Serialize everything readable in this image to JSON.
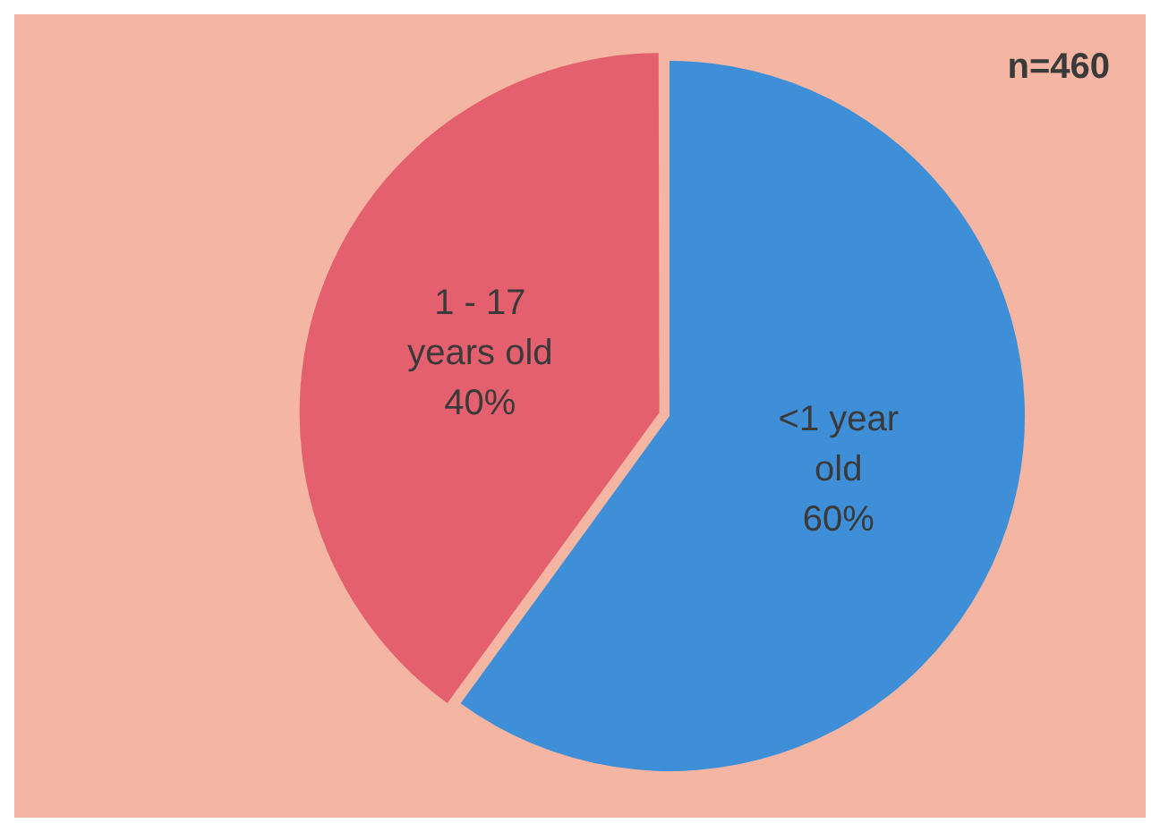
{
  "chart_data": {
    "type": "pie",
    "categories": [
      "<1 year old",
      "1 - 17 years old"
    ],
    "values": [
      60,
      40
    ],
    "colors": [
      "#3f8fd8",
      "#e5606e"
    ],
    "value_labels": [
      "60%",
      "40%"
    ],
    "annotations": [
      "n=460"
    ],
    "legend": false
  }
}
